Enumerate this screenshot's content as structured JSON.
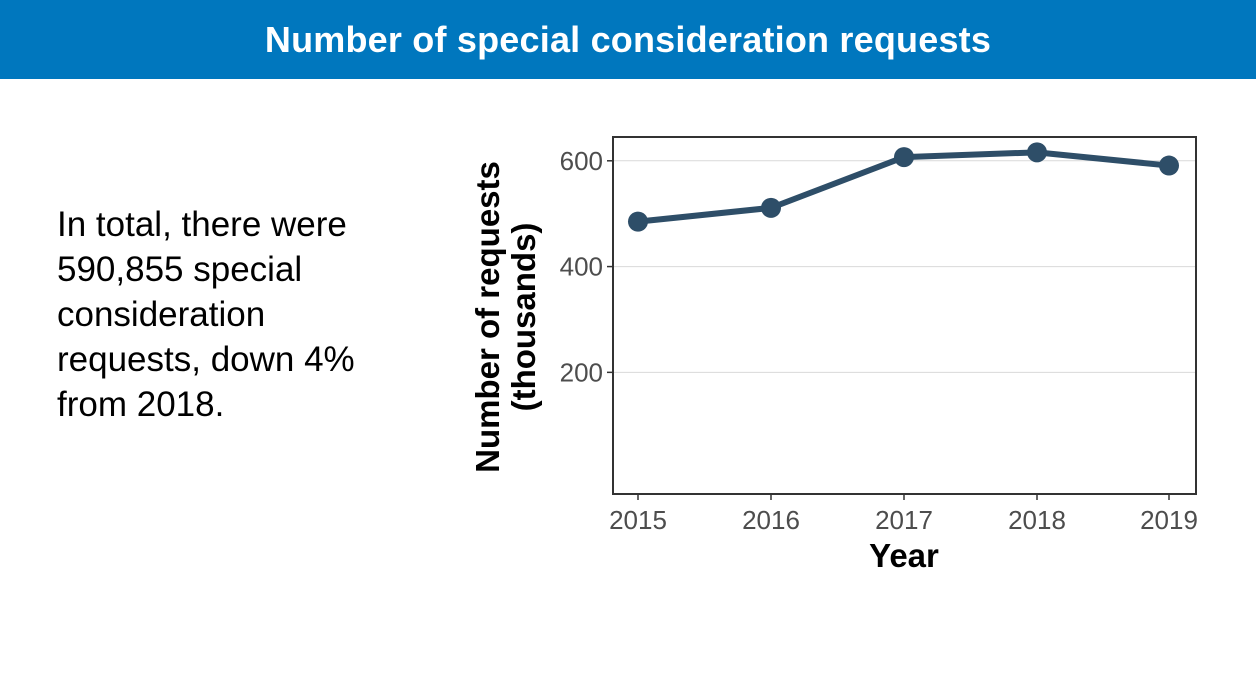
{
  "banner": {
    "title": "Number of special consideration requests",
    "color": "#0077be"
  },
  "summary": {
    "lines": [
      "In total, there were",
      "590,855 special",
      "consideration",
      "requests, down 4%",
      "from 2018."
    ]
  },
  "chart_data": {
    "type": "line",
    "title": "",
    "xlabel": "Year",
    "ylabel_lines": [
      "Number of requests",
      "(thousands)"
    ],
    "x": [
      "2015",
      "2016",
      "2017",
      "2018",
      "2019"
    ],
    "series": [
      {
        "values": [
          485,
          511,
          607,
          616,
          591
        ],
        "color": "#2e4e68"
      }
    ],
    "ylim": [
      -30,
      645
    ],
    "yticks": [
      200,
      400,
      600
    ],
    "grid": "horizontal"
  }
}
